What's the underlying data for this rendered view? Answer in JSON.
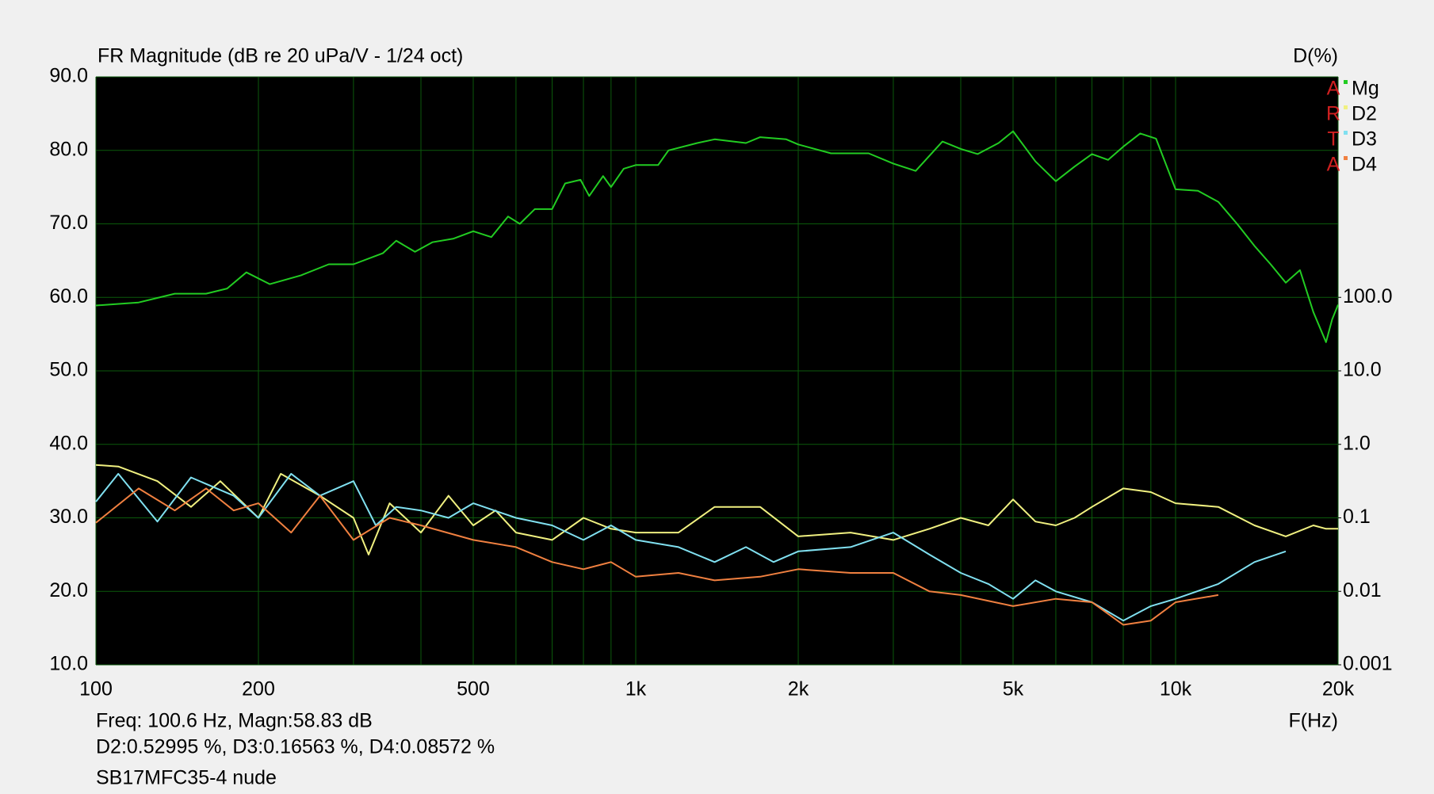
{
  "chart_data": {
    "type": "line",
    "title": "FR Magnitude (dB re 20 uPa/V - 1/24 oct)",
    "y2_label": "D(%)",
    "x_label": "F(Hz)",
    "cursor_lines": [
      "Freq: 100.6 Hz, Magn:58.83 dB",
      "D2:0.52995 %, D3:0.16563 %, D4:0.08572 %",
      "SB17MFC35-4 nude"
    ],
    "watermark": [
      "A",
      "R",
      "T",
      "A"
    ],
    "xscale": "log",
    "xlim": [
      100,
      20000
    ],
    "xticks": [
      100,
      200,
      500,
      {
        "value": 1000,
        "label": "1k"
      },
      {
        "value": 2000,
        "label": "2k"
      },
      {
        "value": 5000,
        "label": "5k"
      },
      {
        "value": 10000,
        "label": "10k"
      },
      {
        "value": 20000,
        "label": "20k"
      }
    ],
    "x_minor_ticks": [
      300,
      400,
      600,
      700,
      800,
      900,
      3000,
      4000,
      6000,
      7000,
      8000,
      9000
    ],
    "ylim": [
      10,
      90
    ],
    "yticks": [
      {
        "value": 10,
        "label": "10.0"
      },
      {
        "value": 20,
        "label": "20.0"
      },
      {
        "value": 30,
        "label": "30.0"
      },
      {
        "value": 40,
        "label": "40.0"
      },
      {
        "value": 50,
        "label": "50.0"
      },
      {
        "value": 60,
        "label": "60.0"
      },
      {
        "value": 70,
        "label": "70.0"
      },
      {
        "value": 80,
        "label": "80.0"
      },
      {
        "value": 90,
        "label": "90.0"
      }
    ],
    "y2scale": "log",
    "y2lim": [
      0.001,
      100000
    ],
    "y2ticks": [
      0.001,
      0.01,
      0.1,
      {
        "value": 1,
        "label": "1.0"
      },
      {
        "value": 10,
        "label": "10.0"
      },
      {
        "value": 100,
        "label": "100.0"
      }
    ],
    "grid": true,
    "legend": "top-right",
    "series": [
      {
        "name": "Mg",
        "color": "#22cc22",
        "x": [
          100,
          120,
          140,
          160,
          175,
          190,
          210,
          240,
          270,
          300,
          340,
          360,
          390,
          420,
          460,
          500,
          540,
          580,
          610,
          650,
          700,
          740,
          790,
          820,
          870,
          900,
          950,
          1000,
          1100,
          1150,
          1300,
          1400,
          1600,
          1700,
          1900,
          2000,
          2300,
          2700,
          3000,
          3300,
          3700,
          4000,
          4300,
          4700,
          5000,
          5500,
          6000,
          6500,
          7000,
          7500,
          8000,
          8600,
          9200,
          10000,
          11000,
          12000,
          13000,
          14000,
          15000,
          16000,
          17000,
          18000,
          19000,
          19500,
          20000
        ],
        "values": [
          58.9,
          59.3,
          60.5,
          60.5,
          61.2,
          63.4,
          61.8,
          63,
          64.5,
          64.5,
          66,
          67.7,
          66.2,
          67.5,
          68,
          69,
          68.2,
          71,
          70,
          72,
          72,
          75.5,
          76,
          73.8,
          76.5,
          75,
          77.5,
          78,
          78,
          80,
          81,
          81.5,
          81,
          81.8,
          81.5,
          80.8,
          79.6,
          79.6,
          78.2,
          77.2,
          81.2,
          80.2,
          79.5,
          81,
          82.6,
          78.5,
          75.8,
          77.8,
          79.5,
          78.7,
          80.5,
          82.3,
          81.6,
          74.7,
          74.5,
          73,
          70,
          67,
          64.5,
          62,
          63.7,
          58,
          53.9,
          57,
          59
        ]
      },
      {
        "name": "D2",
        "color": "#f0f080",
        "axis": "y2",
        "x": [
          100,
          110,
          130,
          150,
          170,
          200,
          220,
          260,
          300,
          320,
          350,
          400,
          450,
          500,
          550,
          600,
          700,
          800,
          900,
          1000,
          1200,
          1400,
          1700,
          2000,
          2500,
          3000,
          3500,
          4000,
          4500,
          5000,
          5500,
          6000,
          6500,
          7000,
          8000,
          9000,
          10000,
          12000,
          14000,
          16000,
          18000,
          19000,
          20000
        ],
        "values": [
          0.525,
          0.5,
          0.316,
          0.141,
          0.316,
          0.1,
          0.398,
          0.2,
          0.1,
          0.0316,
          0.158,
          0.063,
          0.2,
          0.079,
          0.126,
          0.063,
          0.05,
          0.1,
          0.071,
          0.063,
          0.063,
          0.141,
          0.141,
          0.056,
          0.063,
          0.05,
          0.071,
          0.1,
          0.079,
          0.178,
          0.089,
          0.079,
          0.1,
          0.141,
          0.251,
          0.224,
          0.158,
          0.141,
          0.079,
          0.056,
          0.079,
          0.071,
          0.071
        ]
      },
      {
        "name": "D3",
        "color": "#80e0f0",
        "axis": "y2",
        "x": [
          100,
          110,
          130,
          150,
          180,
          200,
          230,
          260,
          300,
          330,
          360,
          400,
          450,
          500,
          600,
          700,
          800,
          900,
          1000,
          1200,
          1400,
          1600,
          1800,
          2000,
          2500,
          3000,
          3500,
          4000,
          4500,
          5000,
          5500,
          6000,
          7000,
          8000,
          9000,
          10000,
          12000,
          14000,
          16000
        ],
        "values": [
          0.166,
          0.398,
          0.089,
          0.355,
          0.2,
          0.1,
          0.398,
          0.2,
          0.316,
          0.079,
          0.141,
          0.126,
          0.1,
          0.158,
          0.1,
          0.079,
          0.05,
          0.079,
          0.05,
          0.04,
          0.025,
          0.04,
          0.025,
          0.035,
          0.04,
          0.063,
          0.0316,
          0.0178,
          0.0126,
          0.0079,
          0.0141,
          0.01,
          0.0071,
          0.004,
          0.0063,
          0.0079,
          0.0126,
          0.025,
          0.035
        ]
      },
      {
        "name": "D4",
        "color": "#f08040",
        "axis": "y2",
        "x": [
          100,
          120,
          140,
          160,
          180,
          200,
          230,
          260,
          300,
          350,
          400,
          500,
          600,
          700,
          800,
          900,
          1000,
          1200,
          1400,
          1700,
          2000,
          2500,
          3000,
          3500,
          4000,
          5000,
          6000,
          7000,
          8000,
          9000,
          10000,
          12000
        ],
        "values": [
          0.0857,
          0.251,
          0.126,
          0.251,
          0.126,
          0.158,
          0.063,
          0.2,
          0.05,
          0.1,
          0.079,
          0.05,
          0.04,
          0.025,
          0.02,
          0.025,
          0.0158,
          0.0178,
          0.0141,
          0.0158,
          0.02,
          0.0178,
          0.0178,
          0.01,
          0.0089,
          0.0063,
          0.0079,
          0.0071,
          0.0035,
          0.004,
          0.0071,
          0.0089
        ]
      }
    ]
  }
}
